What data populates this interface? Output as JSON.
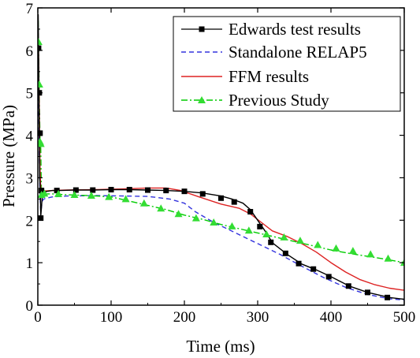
{
  "chart_data": {
    "type": "line",
    "title": "",
    "xlabel": "Time (ms)",
    "ylabel": "Pressure (MPa)",
    "xlim": [
      0,
      500
    ],
    "ylim": [
      0,
      7
    ],
    "x_ticks": [
      0,
      100,
      200,
      300,
      400,
      500
    ],
    "y_ticks": [
      0,
      1,
      2,
      3,
      4,
      5,
      6,
      7
    ],
    "grid": false,
    "legend_position": "top-right",
    "series": [
      {
        "name": "Edwards test results",
        "color": "#000000",
        "style": "solid-square-markers",
        "x": [
          0.5,
          1,
          1.5,
          2,
          2.5,
          3,
          3.5,
          4,
          5,
          6,
          8,
          12,
          20,
          30,
          50,
          75,
          100,
          125,
          150,
          175,
          200,
          225,
          250,
          265,
          280,
          290,
          300,
          310,
          320,
          340,
          360,
          380,
          400,
          425,
          450,
          480,
          500
        ],
        "y": [
          6.85,
          6.05,
          5.0,
          4.05,
          3.0,
          2.85,
          2.55,
          2.08,
          2.3,
          2.55,
          2.65,
          2.68,
          2.7,
          2.7,
          2.71,
          2.71,
          2.72,
          2.72,
          2.71,
          2.7,
          2.68,
          2.64,
          2.57,
          2.5,
          2.4,
          2.25,
          2.0,
          1.75,
          1.47,
          1.2,
          0.97,
          0.83,
          0.67,
          0.45,
          0.3,
          0.18,
          0.14
        ],
        "marker_x": [
          1,
          2,
          3,
          4,
          5,
          26,
          52,
          75,
          100,
          125,
          150,
          175,
          200,
          225,
          250,
          268,
          290,
          303,
          318,
          338,
          356,
          376,
          397,
          424,
          450,
          477
        ],
        "marker_y": [
          6.05,
          5.0,
          4.05,
          2.05,
          2.7,
          2.7,
          2.71,
          2.71,
          2.72,
          2.72,
          2.71,
          2.7,
          2.68,
          2.62,
          2.52,
          2.43,
          2.2,
          1.85,
          1.48,
          1.22,
          0.98,
          0.85,
          0.67,
          0.45,
          0.3,
          0.18
        ]
      },
      {
        "name": "Standalone RELAP5",
        "color": "#3333dd",
        "style": "dashed",
        "x": [
          0,
          1,
          2,
          3,
          4,
          5,
          6,
          8,
          12,
          20,
          40,
          80,
          120,
          150,
          180,
          200,
          215,
          240,
          270,
          300,
          330,
          360,
          390,
          420,
          450,
          480,
          500
        ],
        "y": [
          6.6,
          5.0,
          3.5,
          2.6,
          2.2,
          2.3,
          2.45,
          2.5,
          2.52,
          2.55,
          2.57,
          2.58,
          2.57,
          2.56,
          2.5,
          2.4,
          2.2,
          1.95,
          1.7,
          1.45,
          1.2,
          0.92,
          0.65,
          0.42,
          0.25,
          0.15,
          0.12
        ]
      },
      {
        "name": "FFM results",
        "color": "#dd2222",
        "style": "solid",
        "x": [
          0,
          1,
          2,
          3,
          4,
          5,
          6,
          8,
          12,
          20,
          40,
          80,
          120,
          150,
          175,
          195,
          220,
          250,
          275,
          290,
          305,
          320,
          340,
          360,
          380,
          400,
          420,
          440,
          460,
          480,
          500
        ],
        "y": [
          6.7,
          6.0,
          4.5,
          3.2,
          2.75,
          2.7,
          2.7,
          2.69,
          2.69,
          2.7,
          2.71,
          2.72,
          2.74,
          2.76,
          2.76,
          2.7,
          2.55,
          2.38,
          2.28,
          2.15,
          1.95,
          1.75,
          1.62,
          1.45,
          1.25,
          1.0,
          0.78,
          0.6,
          0.48,
          0.4,
          0.35
        ]
      },
      {
        "name": "Previous Study",
        "color": "#00cc00",
        "marker_color": "#33dd33",
        "style": "dashdot-triangle-markers",
        "x": [
          0.5,
          1,
          2,
          3,
          4,
          5,
          6,
          8,
          12,
          20,
          40,
          70,
          100,
          125,
          150,
          175,
          200,
          225,
          250,
          275,
          300,
          325,
          350,
          375,
          400,
          425,
          450,
          475,
          500
        ],
        "y": [
          6.7,
          6.2,
          4.8,
          3.9,
          3.7,
          2.6,
          2.62,
          2.62,
          2.62,
          2.62,
          2.6,
          2.58,
          2.55,
          2.45,
          2.35,
          2.25,
          2.12,
          2.02,
          1.9,
          1.8,
          1.7,
          1.6,
          1.5,
          1.4,
          1.3,
          1.22,
          1.15,
          1.08,
          1.0
        ],
        "marker_x": [
          1,
          2,
          3,
          4,
          5,
          9,
          28,
          50,
          73,
          97,
          120,
          145,
          168,
          192,
          216,
          240,
          265,
          288,
          312,
          336,
          358,
          382,
          407,
          430,
          454,
          478,
          500
        ],
        "marker_y": [
          6.2,
          5.2,
          3.85,
          3.8,
          2.6,
          2.63,
          2.62,
          2.6,
          2.58,
          2.55,
          2.5,
          2.4,
          2.28,
          2.15,
          2.05,
          1.95,
          1.86,
          1.76,
          1.67,
          1.6,
          1.52,
          1.42,
          1.34,
          1.28,
          1.2,
          1.1,
          1.0
        ]
      }
    ]
  }
}
